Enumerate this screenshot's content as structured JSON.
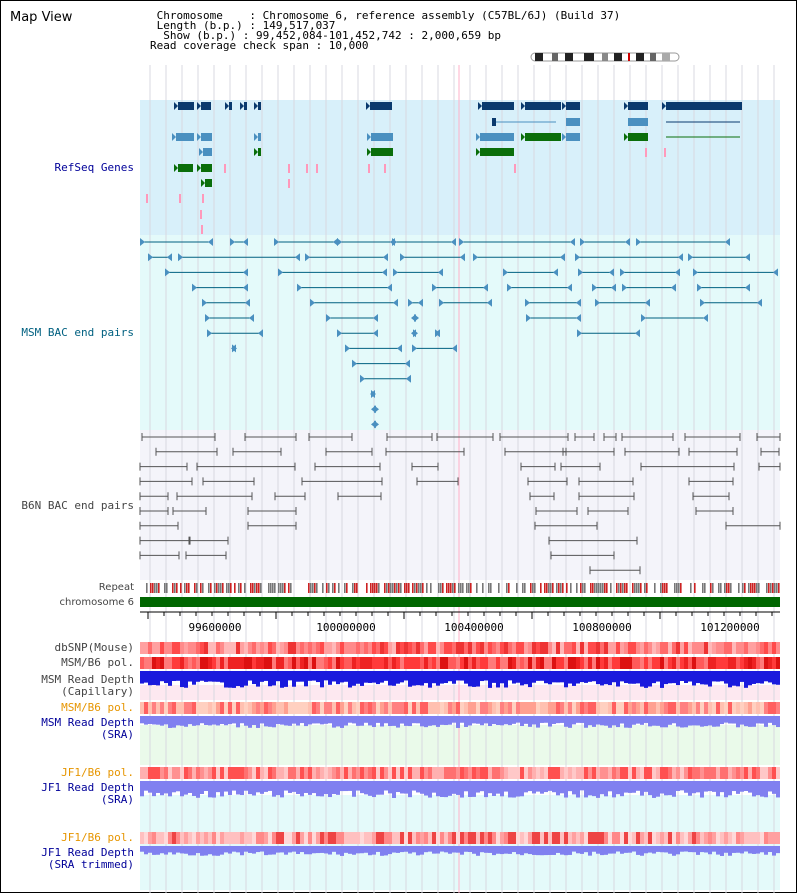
{
  "header": {
    "view_title": "Map View",
    "info_lines": [
      " Chromosome    : Chromosome 6, reference assembly (C57BL/6J) (Build 37)",
      " Length (b.p.) : 149,517,037",
      "  Show (b.p.) : 99,452,084-101,452,742 : 2,000,659 bp",
      "Read coverage check span : 10,000"
    ]
  },
  "tracks": {
    "refseq_label": "RefSeq Genes",
    "msm_bac_label": "MSM BAC end pairs",
    "b6n_bac_label": "B6N BAC end pairs",
    "repeat_label": "Repeat",
    "chromosome_label": "chromosome 6",
    "dbsnp_label": "dbSNP(Mouse)",
    "msm_b6_pol_label": "MSM/B6 pol.",
    "msm_depth_cap_label_1": "MSM Read Depth",
    "msm_depth_cap_label_2": "(Capillary)",
    "msm_b6_pol_label_2": "MSM/B6 pol.",
    "msm_depth_sra_label_1": "MSM Read Depth",
    "msm_depth_sra_label_2": "(SRA)",
    "jf1_b6_pol_label": "JF1/B6 pol.",
    "jf1_depth_sra_label_1": "JF1 Read Depth",
    "jf1_depth_sra_label_2": "(SRA)",
    "jf1_b6_pol_label_2": "JF1/B6 pol.",
    "jf1_depth_trim_label_1": "JF1 Read Depth",
    "jf1_depth_trim_label_2": "(SRA trimmed)"
  },
  "axis": {
    "ticks": [
      "99600000",
      "100000000",
      "100400000",
      "100800000",
      "101200000"
    ]
  },
  "colors": {
    "refseq_bg": "#d8f0fa",
    "msm_bg": "#e4fafa",
    "b6n_bg": "#f4f4fa",
    "gene_navy": "#0a3a6e",
    "gene_light": "#4a90c0",
    "gene_green": "#0a6e0a",
    "pink": "#ff99bb",
    "msm_line": "#006080",
    "b6n_line": "#555555",
    "chromosome": "#006600",
    "polymorphism": "#ee3333",
    "depth_blue": "#1a1add",
    "depth_light": "#8080f0",
    "orange": "#e69500"
  }
}
